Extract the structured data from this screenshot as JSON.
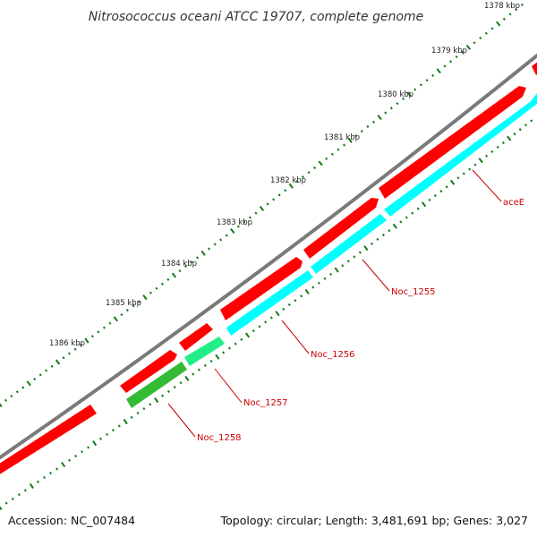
{
  "title": "Nitrosococcus oceani ATCC 19707, complete genome",
  "accession": "Accession: NC_007484",
  "summary": "Topology: circular; Length: 3,481,691 bp; Genes: 3,027",
  "colors": {
    "backbone": "#7a7a7a",
    "tick": "#137a13",
    "gene_red": "#ff0000",
    "gene_cyan": "#00ffff",
    "gene_teal": "#22ee88",
    "gene_green": "#33bb33",
    "label": "#cc0000"
  },
  "kbp_labels": [
    "1378 kbp",
    "1379 kbp",
    "1380 kbp",
    "1381 kbp",
    "1382 kbp",
    "1383 kbp",
    "1384 kbp",
    "1385 kbp",
    "1386 kbp"
  ],
  "genes": [
    {
      "label": "aceE"
    },
    {
      "label": "Noc_1255"
    },
    {
      "label": "Noc_1256"
    },
    {
      "label": "Noc_1257"
    },
    {
      "label": "Noc_1258"
    }
  ]
}
